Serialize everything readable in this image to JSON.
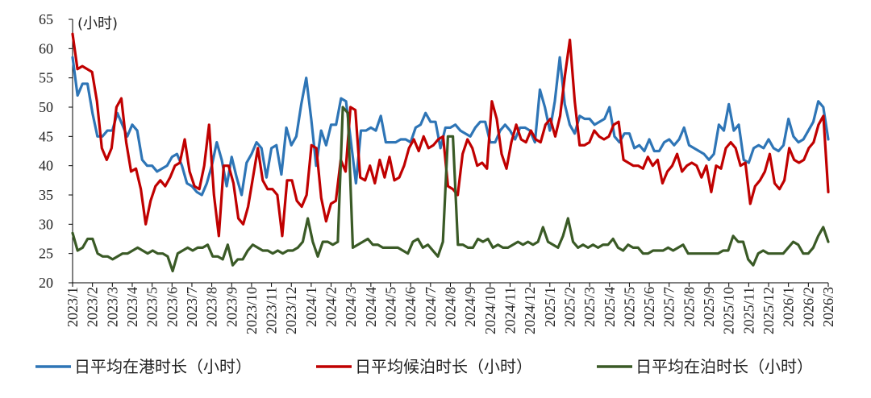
{
  "chart_data": {
    "type": "line",
    "title": "",
    "unit_label": "(小时)",
    "xlabel": "",
    "ylabel": "",
    "ylim": [
      20,
      65
    ],
    "yticks": [
      20,
      25,
      30,
      35,
      40,
      45,
      50,
      55,
      60,
      65
    ],
    "grid": false,
    "legend_position": "bottom",
    "x_ticks": [
      "2023/1",
      "2023/2",
      "2023/3",
      "2023/4",
      "2023/5",
      "2023/6",
      "2023/7",
      "2023/8",
      "2023/9",
      "2023/10",
      "2023/11",
      "2023/12",
      "2024/1",
      "2024/2",
      "2024/3",
      "2024/4",
      "2024/5",
      "2024/6",
      "2024/7",
      "2024/8",
      "2024/9",
      "2024/10",
      "2024/11",
      "2024/12",
      "2025/1",
      "2025/2",
      "2025/3",
      "2025/4",
      "2025/5",
      "2025/6",
      "2025/7",
      "2025/8",
      "2025/9",
      "2025/10",
      "2025/11",
      "2025/12",
      "2026/1",
      "2026/2",
      "2026/3"
    ],
    "series": [
      {
        "name": "日平均在港时长（小时）",
        "color": "#2e75b6",
        "values": [
          58.5,
          52,
          54,
          54,
          49,
          45,
          45,
          46,
          46,
          49,
          47,
          45,
          47,
          46,
          41,
          40,
          40,
          39,
          39.5,
          40,
          41.5,
          42,
          40,
          37,
          36.5,
          35.5,
          35,
          37,
          40,
          44,
          41,
          36.5,
          41.5,
          38,
          35,
          40.5,
          42,
          44,
          43,
          38,
          43,
          43.5,
          38.5,
          46.5,
          43.5,
          45,
          50.5,
          55,
          48,
          40,
          46,
          43.5,
          47,
          47,
          51.5,
          51,
          44,
          37,
          46,
          46,
          46.5,
          46,
          48.5,
          44,
          44,
          44,
          44.5,
          44.5,
          44,
          46.5,
          47,
          49,
          47.5,
          47.5,
          43,
          46.5,
          46.5,
          47,
          46,
          45.5,
          45,
          46.5,
          47.5,
          47.5,
          44,
          44,
          46,
          47,
          46,
          44.5,
          46.5,
          46.5,
          46,
          44,
          53,
          50,
          46,
          51,
          58.5,
          50.5,
          47,
          45.5,
          48.5,
          48,
          48,
          47,
          47.5,
          48,
          50,
          45,
          44,
          45.5,
          45.5,
          43,
          43.5,
          42.5,
          44.5,
          42.5,
          42.5,
          44,
          44.5,
          43.5,
          44.5,
          46.5,
          43.5,
          43,
          42.5,
          42,
          41,
          42,
          47,
          46,
          50.5,
          46,
          47,
          41,
          40.5,
          43,
          43.5,
          43,
          44.5,
          43,
          42.5,
          43.5,
          48,
          45,
          44,
          44.5,
          46,
          47.5,
          51,
          50,
          44.5
        ]
      },
      {
        "name": "日平均候泊时长（小时）",
        "color": "#c00000",
        "values": [
          62.5,
          56.5,
          57,
          56.5,
          56,
          51,
          43,
          41,
          43,
          50,
          51.5,
          44,
          39,
          39.5,
          36,
          30,
          34,
          36.5,
          37.5,
          36.5,
          38,
          40,
          40.5,
          44.5,
          39,
          36.5,
          36,
          40,
          47,
          35,
          28,
          40,
          40,
          37,
          31,
          30,
          33,
          38,
          43,
          37.5,
          36,
          36,
          35,
          28,
          37.5,
          37.5,
          34,
          33,
          35,
          43.5,
          43,
          34.5,
          30.5,
          33.5,
          34,
          41,
          39,
          50,
          49.5,
          38,
          37.5,
          40,
          37,
          41,
          38,
          41.5,
          37.5,
          38,
          40,
          43,
          44.5,
          42.5,
          45,
          43,
          43.5,
          44.5,
          45,
          36.5,
          36,
          35,
          42,
          44.5,
          43,
          40,
          40.5,
          39.5,
          51,
          48,
          42,
          39.5,
          44,
          47,
          44.5,
          44,
          46,
          44.5,
          44,
          47,
          48,
          45,
          48.5,
          55.5,
          61.5,
          51,
          43.5,
          43.5,
          44,
          46,
          45,
          44.5,
          45,
          47,
          47.5,
          41,
          40.5,
          40,
          40,
          39.5,
          41.5,
          40,
          41,
          37,
          39,
          40,
          42,
          39,
          40,
          40.5,
          40,
          38,
          40,
          35.5,
          40,
          39.5,
          43,
          44,
          43,
          40,
          40.5,
          33.5,
          36.5,
          37.5,
          39,
          42,
          37,
          36,
          37.5,
          43,
          41,
          40.5,
          41,
          43,
          44,
          47,
          48.5,
          35.5
        ]
      },
      {
        "name": "日平均在泊时长（小时）",
        "color": "#3a5a26",
        "values": [
          28.5,
          25.5,
          26,
          27.5,
          27.5,
          25,
          24.5,
          24.5,
          24,
          24.5,
          25,
          25,
          25.5,
          26,
          25.5,
          25,
          25.5,
          25,
          25,
          24.5,
          22,
          25,
          25.5,
          26,
          25.5,
          26,
          26,
          26.5,
          24.5,
          24.5,
          24,
          26.5,
          23,
          24,
          24,
          25.5,
          26.5,
          26,
          25.5,
          25.5,
          25,
          25.5,
          25,
          25.5,
          25.5,
          26,
          27,
          31,
          27,
          24.5,
          27,
          27,
          26.5,
          27,
          50,
          49,
          26,
          26.5,
          27,
          27.5,
          26.5,
          26.5,
          26,
          26,
          26,
          26,
          25.5,
          25,
          27,
          27.5,
          26,
          26.5,
          25.5,
          24.5,
          27,
          45,
          45,
          26.5,
          26.5,
          26,
          26,
          27.5,
          27,
          27.5,
          26,
          26.5,
          26,
          26,
          26.5,
          27,
          26.5,
          27,
          26.5,
          27,
          29.5,
          27,
          26.5,
          26,
          28,
          31,
          27,
          26,
          26.5,
          26,
          26.5,
          26,
          26.5,
          26.5,
          27.5,
          26,
          25.5,
          26.5,
          26,
          26,
          25,
          25,
          25.5,
          25.5,
          25.5,
          26,
          25.5,
          26,
          26.5,
          25,
          25,
          25,
          25,
          25,
          25,
          25,
          25.5,
          25.5,
          28,
          27,
          27,
          24,
          23,
          25,
          25.5,
          25,
          25,
          25,
          25,
          26,
          27,
          26.5,
          25,
          25,
          26,
          28,
          29.5,
          27
        ]
      }
    ]
  }
}
